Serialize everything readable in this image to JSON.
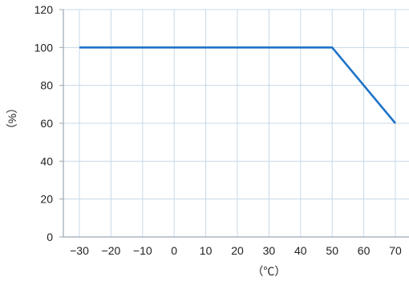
{
  "chart_data": {
    "type": "line",
    "title": "",
    "xlabel": "（℃）",
    "ylabel": "（%）",
    "xlim": [
      -30,
      70
    ],
    "ylim": [
      0,
      120
    ],
    "x_ticks": [
      "−30",
      "−20",
      "−10",
      "0",
      "10",
      "20",
      "30",
      "40",
      "50",
      "60",
      "70"
    ],
    "y_ticks": [
      "0",
      "20",
      "40",
      "60",
      "80",
      "100",
      "120"
    ],
    "grid": true,
    "series": [
      {
        "x": [
          -30,
          50,
          70
        ],
        "y": [
          100,
          100,
          60
        ],
        "color": "#1f73c8"
      }
    ],
    "colors": {
      "line": "#1f73c8",
      "grid": "#c7d8e8",
      "axis": "#9aa7b3"
    }
  }
}
